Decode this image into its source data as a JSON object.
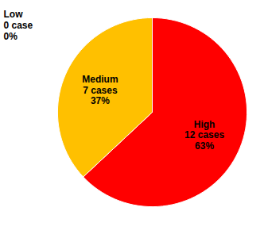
{
  "chart_data": {
    "type": "pie",
    "categories": [
      "High",
      "Medium",
      "Low"
    ],
    "values": [
      63,
      37,
      0
    ],
    "value_labels": [
      "12 cases\n63%",
      "7 cases\n37%",
      "0 case\n0%"
    ],
    "colors": [
      "#FF0000",
      "#FFC000",
      "#FF0000"
    ],
    "data_labels": true
  }
}
